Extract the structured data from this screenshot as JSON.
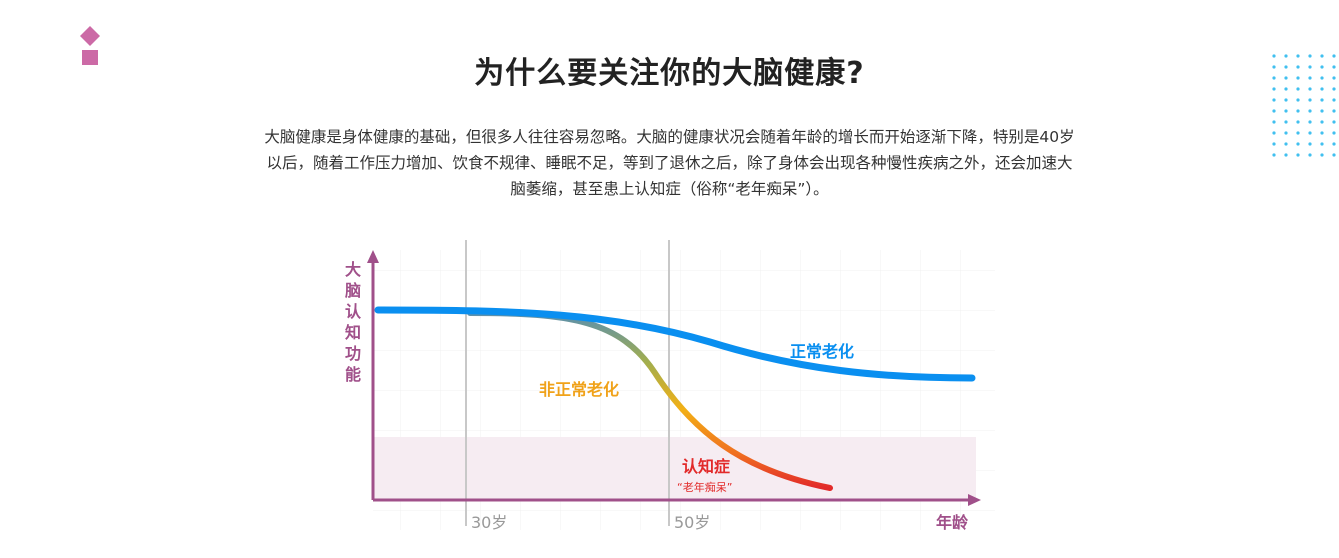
{
  "header": {
    "title": "为什么要关注你的大脑健康?",
    "intro": "大脑健康是身体健康的基础，但很多人往往容易忽略。大脑的健康状况会随着年龄的增长而开始逐渐下降，特别是40岁以后，随着工作压力增加、饮食不规律、睡眠不足，等到了退休之后，除了身体会出现各种慢性疾病之外，还会加速大脑萎缩，甚至患上认知症（俗称“老年痴呆”）。"
  },
  "diagram": {
    "y_axis_chars": [
      "大",
      "脑",
      "认",
      "知",
      "功",
      "能"
    ],
    "x_axis_label": "年龄",
    "ticks": [
      "30岁",
      "50岁"
    ],
    "normal_label": "正常老化",
    "abnormal_label": "非正常老化",
    "dementia_label": "认知症",
    "dementia_sub": "“老年痴呆”",
    "colors": {
      "axis": "#a0508a",
      "normal": "#0a8ff0",
      "abnormal": "#f0a21a",
      "dementia": "#e22a2a",
      "zone": "#f6ecf2",
      "logo": "#cc6aa6",
      "dots": "#41c0ef"
    }
  }
}
